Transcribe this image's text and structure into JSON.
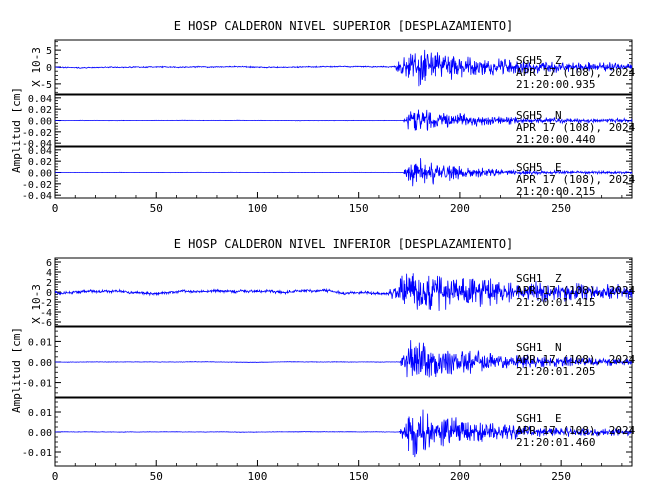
{
  "chart_data": [
    {
      "type": "line",
      "title": "E HOSP CALDERON NIVEL SUPERIOR [DESPLAZAMIENTO]",
      "ylabel": "Amplitud [cm]",
      "x_ticks": [
        0,
        50,
        100,
        150,
        200,
        250
      ],
      "xlim": [
        0,
        285
      ],
      "line_color": "#0000ff",
      "panels": [
        {
          "station": "SGH5",
          "component": "Z",
          "date": "APR 17 (108), 2024",
          "time": "21:20:00.935",
          "scale_label": "X 10-3",
          "y_ticks": [
            5,
            0,
            -5
          ],
          "y_tick_labels": [
            "5",
            "0",
            "-5"
          ],
          "ylim": [
            -8,
            8
          ],
          "pre_event_amplitude": 0.5,
          "peak_amplitude": 6.5,
          "coda_amplitude": 1.2,
          "arrival_s": 168,
          "peak_s": 175,
          "decay_s": 34,
          "seed": 11
        },
        {
          "station": "SGH5",
          "component": "N",
          "date": "APR 17 (108), 2024",
          "time": "21:20:00.440",
          "scale_label": "",
          "y_ticks": [
            0.04,
            0.02,
            0.0,
            -0.02,
            -0.04
          ],
          "y_tick_labels": [
            "0.04",
            "0.02",
            "0.00",
            "-0.02",
            "-0.04"
          ],
          "ylim": [
            -0.045,
            0.045
          ],
          "pre_event_amplitude": 0.0008,
          "peak_amplitude": 0.026,
          "coda_amplitude": 0.003,
          "arrival_s": 172,
          "peak_s": 176,
          "decay_s": 30,
          "seed": 23
        },
        {
          "station": "SGH5",
          "component": "E",
          "date": "APR 17 (108), 2024",
          "time": "21:20:00.215",
          "scale_label": "",
          "y_ticks": [
            0.04,
            0.02,
            0.0,
            -0.02,
            -0.04
          ],
          "y_tick_labels": [
            "0.04",
            "0.02",
            "0.00",
            "-0.02",
            "-0.04"
          ],
          "ylim": [
            -0.045,
            0.045
          ],
          "pre_event_amplitude": 0.0006,
          "peak_amplitude": 0.034,
          "coda_amplitude": 0.002,
          "arrival_s": 172,
          "peak_s": 176,
          "decay_s": 22,
          "seed": 37
        }
      ]
    },
    {
      "type": "line",
      "title": "E HOSP CALDERON NIVEL INFERIOR [DESPLAZAMIENTO]",
      "ylabel": "Amplitud [cm]",
      "x_ticks": [
        0,
        50,
        100,
        150,
        200,
        250
      ],
      "xlim": [
        0,
        285
      ],
      "line_color": "#0000ff",
      "panels": [
        {
          "station": "SGH1",
          "component": "Z",
          "date": "APR 17 (108), 2024",
          "time": "21:20:01.415",
          "scale_label": "X 10-3",
          "y_ticks": [
            6,
            4,
            2,
            0,
            -2,
            -4,
            -6
          ],
          "y_tick_labels": [
            "6",
            "4",
            "2",
            "0",
            "-2",
            "-4",
            "-6"
          ],
          "ylim": [
            -6.8,
            6.8
          ],
          "pre_event_amplitude": 0.9,
          "peak_amplitude": 5.5,
          "coda_amplitude": 1.3,
          "arrival_s": 165,
          "peak_s": 177,
          "decay_s": 40,
          "seed": 53
        },
        {
          "station": "SGH1",
          "component": "N",
          "date": "APR 17 (108), 2024",
          "time": "21:20:01.205",
          "scale_label": "",
          "y_ticks": [
            0.01,
            0.0,
            -0.01
          ],
          "y_tick_labels": [
            "0.01",
            "0.00",
            "-0.01"
          ],
          "ylim": [
            -0.017,
            0.017
          ],
          "pre_event_amplitude": 0.0003,
          "peak_amplitude": 0.013,
          "coda_amplitude": 0.0015,
          "arrival_s": 170,
          "peak_s": 175,
          "decay_s": 32,
          "seed": 71
        },
        {
          "station": "SGH1",
          "component": "E",
          "date": "APR 17 (108), 2024",
          "time": "21:20:01.460",
          "scale_label": "",
          "y_ticks": [
            0.01,
            0.0,
            -0.01
          ],
          "y_tick_labels": [
            "0.01",
            "0.00",
            "-0.01"
          ],
          "ylim": [
            -0.017,
            0.017
          ],
          "pre_event_amplitude": 0.0003,
          "peak_amplitude": 0.014,
          "coda_amplitude": 0.0015,
          "arrival_s": 170,
          "peak_s": 176,
          "decay_s": 30,
          "seed": 89
        }
      ]
    }
  ]
}
